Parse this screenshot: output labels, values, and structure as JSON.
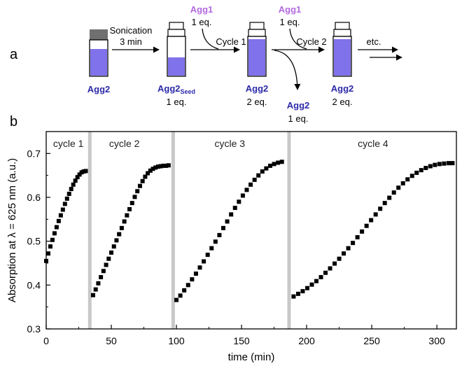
{
  "panel_a": {
    "letter": "a",
    "agg2": "Agg2",
    "sonication": "Sonication",
    "sonication_time": "3 min",
    "agg2_seed_base": "Agg2",
    "agg2_seed_sub": "Seed",
    "agg1": "Agg1",
    "one_eq": "1 eq.",
    "two_eq": "2 eq.",
    "cycle1": "Cycle 1",
    "cycle2": "Cycle 2",
    "etc": "etc."
  },
  "panel_b": {
    "letter": "b"
  },
  "colors": {
    "vial_liquid": "#7f72ea",
    "vial_liquid_light": "#a79df0",
    "agg2_text": "#2d2aa8",
    "agg1_text": "#b36ae0",
    "separator": "#c8c8c8",
    "marker": "#000000"
  },
  "chart_data": {
    "type": "scatter",
    "marker": "square",
    "xlabel": "time (min)",
    "ylabel": "Absorption at λ = 625 nm (a.u.)",
    "xlim": [
      0,
      315
    ],
    "ylim": [
      0.3,
      0.75
    ],
    "xticks": [
      0,
      50,
      100,
      150,
      200,
      250,
      300
    ],
    "yticks": [
      0.3,
      0.4,
      0.5,
      0.6,
      0.7
    ],
    "grid": false,
    "separators_x": [
      33.5,
      97.5,
      186.5
    ],
    "cycle_labels": [
      {
        "text": "cycle 1",
        "x": 17,
        "y": 0.715
      },
      {
        "text": "cycle 2",
        "x": 60,
        "y": 0.715
      },
      {
        "text": "cycle 3",
        "x": 141,
        "y": 0.715
      },
      {
        "text": "cycle 4",
        "x": 251,
        "y": 0.715
      }
    ],
    "series": [
      {
        "x": [
          0,
          1.6,
          3.2,
          4.8,
          6.4,
          8,
          9.6,
          11.2,
          12.8,
          14.4,
          16,
          17.6,
          19.2,
          20.8,
          22.4,
          24,
          25.6,
          27.2,
          28.8,
          30.4
        ],
        "y": [
          0.455,
          0.472,
          0.488,
          0.503,
          0.518,
          0.532,
          0.546,
          0.559,
          0.572,
          0.585,
          0.597,
          0.608,
          0.619,
          0.629,
          0.638,
          0.646,
          0.652,
          0.657,
          0.659,
          0.66
        ]
      },
      {
        "x": [
          36,
          38,
          40,
          42,
          44,
          46,
          48,
          50,
          52,
          54,
          56,
          58,
          60,
          62,
          64,
          66,
          68,
          70,
          72,
          74,
          76,
          78,
          80,
          82,
          84,
          86,
          88,
          90,
          92,
          94
        ],
        "y": [
          0.377,
          0.39,
          0.404,
          0.418,
          0.432,
          0.446,
          0.46,
          0.474,
          0.488,
          0.502,
          0.516,
          0.53,
          0.545,
          0.559,
          0.573,
          0.587,
          0.601,
          0.614,
          0.626,
          0.637,
          0.647,
          0.655,
          0.661,
          0.665,
          0.668,
          0.67,
          0.671,
          0.672,
          0.672,
          0.673
        ]
      },
      {
        "x": [
          100,
          103,
          106,
          109,
          112,
          115,
          118,
          121,
          124,
          127,
          130,
          133,
          136,
          139,
          142,
          145,
          148,
          151,
          154,
          157,
          160,
          163,
          166,
          169,
          172,
          175,
          178,
          181
        ],
        "y": [
          0.366,
          0.376,
          0.388,
          0.4,
          0.413,
          0.426,
          0.44,
          0.454,
          0.469,
          0.484,
          0.499,
          0.514,
          0.53,
          0.545,
          0.561,
          0.576,
          0.59,
          0.604,
          0.617,
          0.629,
          0.64,
          0.65,
          0.659,
          0.666,
          0.672,
          0.676,
          0.679,
          0.681
        ]
      },
      {
        "x": [
          190,
          193.5,
          197,
          200.5,
          204,
          207.5,
          211,
          214.5,
          218,
          221.5,
          225,
          228.5,
          232,
          235.5,
          239,
          242.5,
          246,
          249.5,
          253,
          256.5,
          260,
          263.5,
          267,
          270.5,
          274,
          277.5,
          281,
          284.5,
          288,
          291.5,
          295,
          298.5,
          302,
          305.5,
          309,
          312
        ],
        "y": [
          0.374,
          0.38,
          0.386,
          0.393,
          0.401,
          0.409,
          0.418,
          0.428,
          0.438,
          0.449,
          0.46,
          0.472,
          0.484,
          0.496,
          0.509,
          0.522,
          0.535,
          0.548,
          0.561,
          0.574,
          0.587,
          0.599,
          0.611,
          0.622,
          0.632,
          0.641,
          0.649,
          0.656,
          0.662,
          0.667,
          0.671,
          0.674,
          0.676,
          0.677,
          0.678,
          0.678
        ]
      }
    ]
  }
}
